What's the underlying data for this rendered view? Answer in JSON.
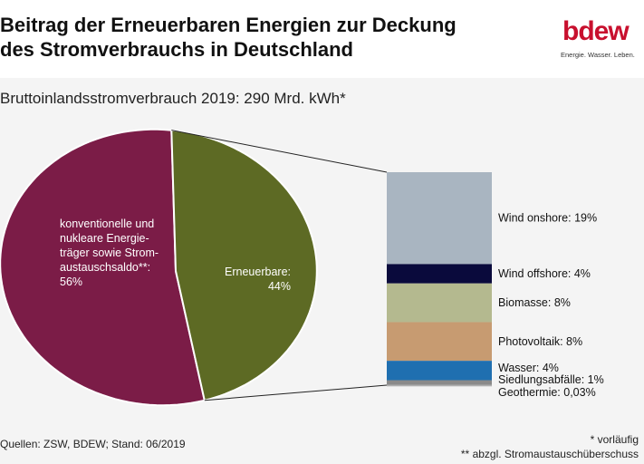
{
  "header": {
    "title_line1": "Beitrag der Erneuerbaren Energien zur Deckung",
    "title_line2": "des Stromverbrauchs in Deutschland"
  },
  "logo": {
    "text": "bdew",
    "tagline": "Energie. Wasser. Leben.",
    "color": "#c8102e"
  },
  "subtitle": "Bruttoinlandsstromverbrauch 2019: 290 Mrd. kWh*",
  "chart_data": [
    {
      "type": "pie",
      "categories": [
        "konventionelle und nukleare Energieträger sowie Stromaustauschsaldo**",
        "Erneuerbare"
      ],
      "values": [
        56,
        44
      ],
      "unit": "%",
      "labels": [
        [
          "konventionelle und",
          "nukleare Energie-",
          "träger sowie Strom-",
          "austauschsaldo**:",
          "56%"
        ],
        [
          "Erneuerbare:",
          "44%"
        ]
      ],
      "colors": [
        "#7b1c47",
        "#5d6a24"
      ]
    },
    {
      "type": "bar",
      "stacked": true,
      "categories": [
        "Wind onshore",
        "Wind offshore",
        "Biomasse",
        "Photovoltaik",
        "Wasser",
        "Siedlungsabfälle",
        "Geothermie"
      ],
      "values": [
        19,
        4,
        8,
        8,
        4,
        1,
        0.03
      ],
      "unit": "%",
      "labels": [
        "Wind onshore: 19%",
        "Wind offshore: 4%",
        "Biomasse: 8%",
        "Photovoltaik: 8%",
        "Wasser: 4%",
        "Siedlungsabfälle: 1%",
        "Geothermie: 0,03%"
      ],
      "colors": [
        "#a9b5c1",
        "#0a0a3c",
        "#b4b98f",
        "#c79b71",
        "#1f6fb0",
        "#8a8a8a",
        "#b0b0b0"
      ]
    }
  ],
  "footer": {
    "source": "Quellen: ZSW, BDEW; Stand: 06/2019",
    "note1": "* vorläufig",
    "note2": "** abzgl. Stromaustauschüberschuss"
  }
}
